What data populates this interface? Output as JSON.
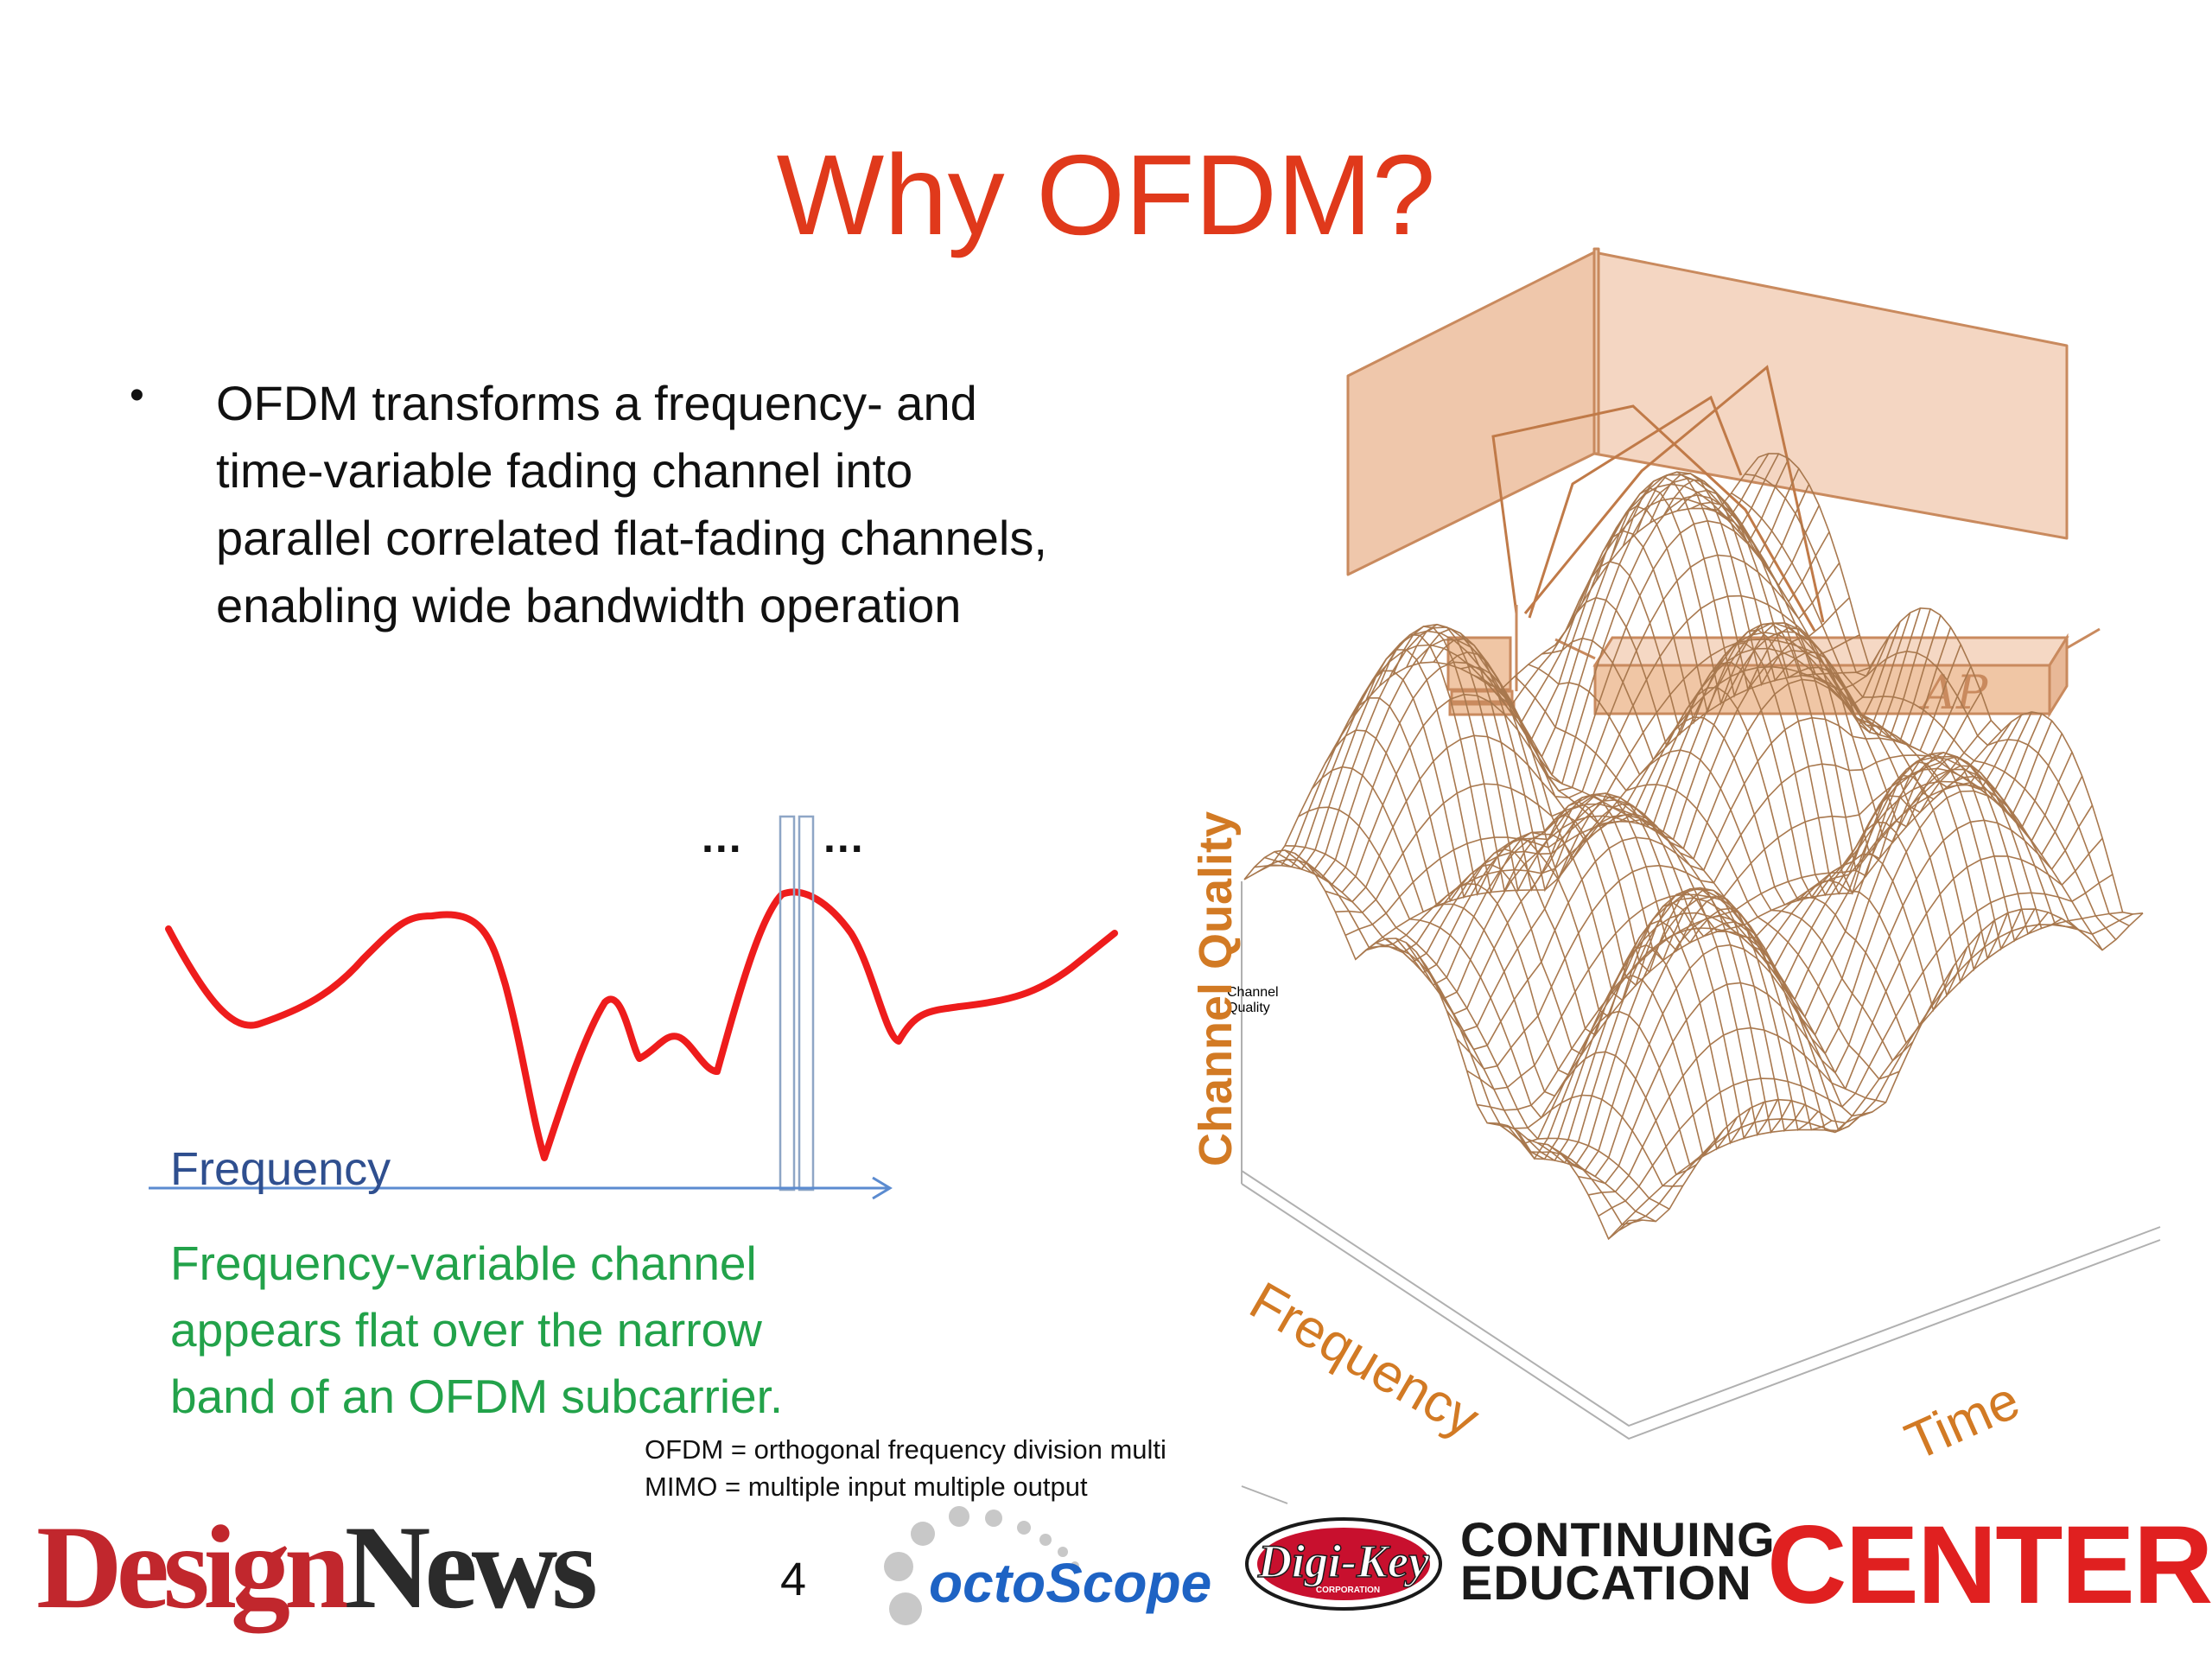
{
  "title": "Why OFDM?",
  "bullet": {
    "lines": [
      "OFDM transforms a frequency- and",
      "time-variable fading channel into",
      "parallel correlated flat-fading channels,",
      "enabling wide bandwidth operation"
    ]
  },
  "left_figure": {
    "ellipsis_left": "...",
    "ellipsis_right": "...",
    "axis_label": "Frequency",
    "caption_lines": [
      "Frequency-variable channel",
      "appears flat over the narrow",
      "band of an OFDM subcarrier."
    ]
  },
  "right_figure": {
    "ap_label": "AP",
    "z_label": "Channel Quality",
    "x_label": "Frequency",
    "y_label": "Time"
  },
  "footnotes": [
    "OFDM = orthogonal frequency division multi",
    "MIMO = multiple input multiple output"
  ],
  "page_number": "4",
  "logos": {
    "designnews_part1": "Design",
    "designnews_part2": "News",
    "octoscope": "octoScope",
    "digikey": "Digi-Key",
    "digikey_sub": "CORPORATION",
    "cec_line1": "CONTINUING",
    "cec_line2": "EDUCATION",
    "cec_center": "CENTER"
  },
  "colors": {
    "title": "#e0391b",
    "curve": "#ee1c1c",
    "caption": "#22a24a",
    "mesh": "#a8784e",
    "axis_label": "#d27a24"
  }
}
